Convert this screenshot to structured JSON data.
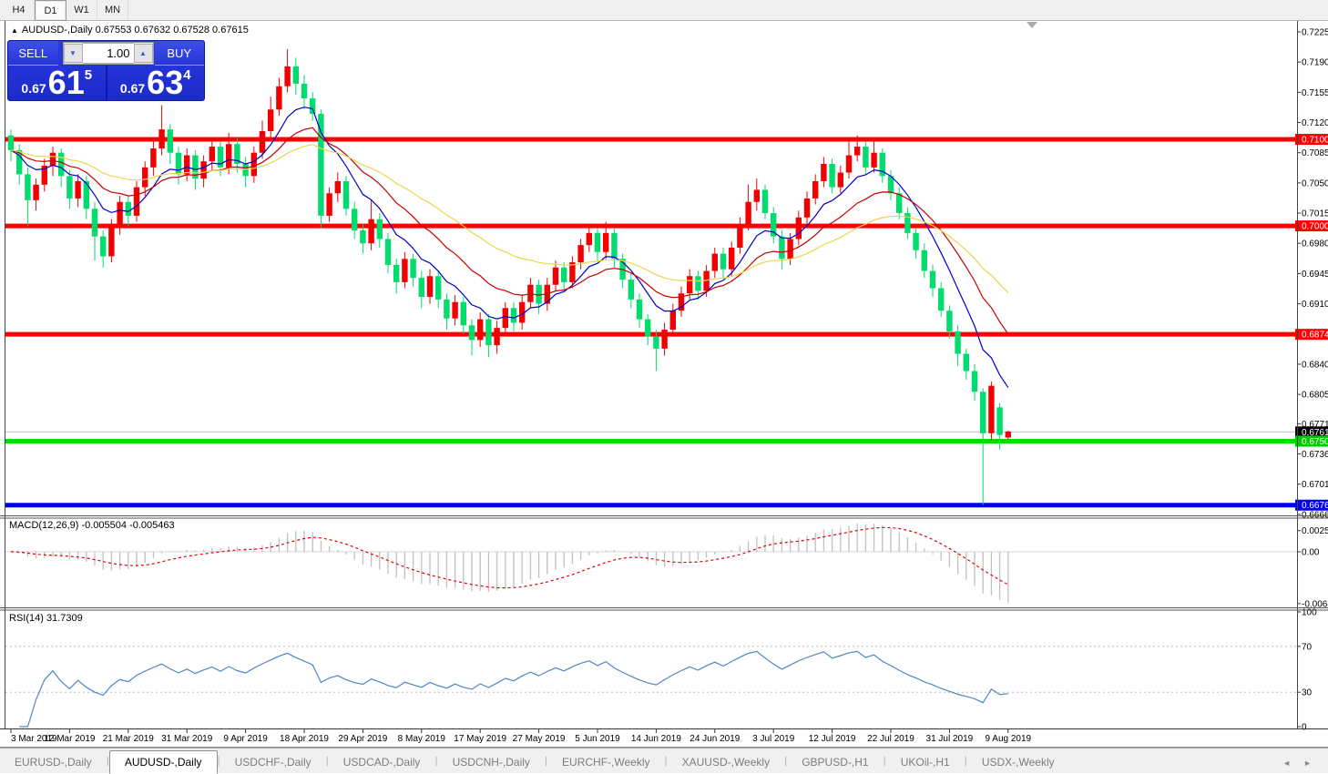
{
  "toolbar": {
    "timeframes": [
      {
        "label": "H4",
        "active": false
      },
      {
        "label": "D1",
        "active": true
      },
      {
        "label": "W1",
        "active": false
      },
      {
        "label": "MN",
        "active": false
      }
    ]
  },
  "chart_header": {
    "collapse_arrow": "▲",
    "title": "AUDUSD-,Daily  0.67553 0.67632 0.67528 0.67615",
    "symbol": "AUDUSD-",
    "period": "Daily",
    "open": "0.67553",
    "high": "0.67632",
    "low": "0.67528",
    "close": "0.67615"
  },
  "trade_panel": {
    "sell_label": "SELL",
    "buy_label": "BUY",
    "volume": "1.00",
    "spin_down": "▼",
    "spin_up": "▲",
    "sell_price_small": "0.67",
    "sell_price_big": "61",
    "sell_price_sup": "5",
    "buy_price_small": "0.67",
    "buy_price_big": "63",
    "buy_price_sup": "4"
  },
  "colors": {
    "candle_up": "#f20000",
    "candle_down": "#00dc6e",
    "ma_fast": "#0000c8",
    "ma_mid": "#c80000",
    "ma_slow": "#e8d84e",
    "macd_hist": "#c0c0c0",
    "macd_signal": "#e00000",
    "rsi_line": "#4e86c8",
    "level_red": "#ff0000",
    "level_green": "#00dd00",
    "level_blue": "#0000f0",
    "current_price_line": "#c0c0c0",
    "tag_red": "#ff0000",
    "tag_green": "#00cc00",
    "tag_blue": "#0000e8",
    "tag_black": "#000000"
  },
  "price_axis": {
    "ticks": [
      "0.72250",
      "0.71900",
      "0.71550",
      "0.71200",
      "0.70850",
      "0.70500",
      "0.70150",
      "0.69800",
      "0.69450",
      "0.69100",
      "0.68400",
      "0.68050",
      "0.67710",
      "0.67360",
      "0.67010",
      "0.66660"
    ],
    "tick_values": [
      0.7225,
      0.719,
      0.7155,
      0.712,
      0.7085,
      0.705,
      0.7015,
      0.698,
      0.6945,
      0.691,
      0.684,
      0.6805,
      0.6771,
      0.6736,
      0.6701,
      0.6666
    ]
  },
  "levels": {
    "resistance": [
      {
        "value": 0.71005,
        "label": "0.71005"
      },
      {
        "value": 0.70002,
        "label": "0.70002"
      },
      {
        "value": 0.68746,
        "label": "0.68746"
      }
    ],
    "support_green": {
      "value": 0.67508,
      "label": "0.67508"
    },
    "support_blue": {
      "value": 0.66767,
      "label": "0.66767"
    },
    "current_price": {
      "value": 0.67615,
      "label": "0.67615"
    }
  },
  "indicators": {
    "macd": {
      "label": "MACD(12,26,9) -0.005504 -0.005463",
      "name": "MACD(12,26,9)",
      "main_value": "-0.005504",
      "signal_value": "-0.005463",
      "axis": [
        {
          "text": "0.002574",
          "value": 0.002574
        },
        {
          "text": "0.00",
          "value": 0
        },
        {
          "text": "-0.00632",
          "value": -0.00632
        }
      ]
    },
    "rsi": {
      "label": "RSI(14) 31.7309",
      "name": "RSI(14)",
      "value": "31.7309",
      "axis": [
        {
          "text": "100",
          "value": 100
        },
        {
          "text": "70",
          "value": 70
        },
        {
          "text": "30",
          "value": 30
        },
        {
          "text": "0",
          "value": 0
        }
      ],
      "levels": [
        30,
        70
      ]
    }
  },
  "chart_data": {
    "type": "candlestick",
    "symbol": "AUDUSD-",
    "timeframe": "Daily",
    "price_scale": 0.0001,
    "x_axis_dates": [
      "3 Mar 2019",
      "12 Mar 2019",
      "21 Mar 2019",
      "31 Mar 2019",
      "9 Apr 2019",
      "18 Apr 2019",
      "29 Apr 2019",
      "8 May 2019",
      "17 May 2019",
      "27 May 2019",
      "5 Jun 2019",
      "14 Jun 2019",
      "24 Jun 2019",
      "3 Jul 2019",
      "12 Jul 2019",
      "22 Jul 2019",
      "31 Jul 2019",
      "9 Aug 2019"
    ],
    "bars_per_label": 7,
    "ylim": [
      0.6666,
      0.7232
    ],
    "candles_ohlc_pips": [
      [
        7105,
        7112,
        7075,
        7088
      ],
      [
        7088,
        7095,
        7048,
        7060
      ],
      [
        7060,
        7068,
        7000,
        7030
      ],
      [
        7030,
        7055,
        7018,
        7048
      ],
      [
        7048,
        7078,
        7040,
        7070
      ],
      [
        7070,
        7092,
        7058,
        7085
      ],
      [
        7085,
        7090,
        7045,
        7058
      ],
      [
        7058,
        7065,
        7020,
        7032
      ],
      [
        7032,
        7060,
        7022,
        7052
      ],
      [
        7052,
        7058,
        7008,
        7020
      ],
      [
        7020,
        7028,
        6960,
        6988
      ],
      [
        6988,
        6995,
        6952,
        6965
      ],
      [
        6965,
        7008,
        6958,
        7000
      ],
      [
        7000,
        7035,
        6990,
        7028
      ],
      [
        7028,
        7035,
        7000,
        7012
      ],
      [
        7012,
        7052,
        7005,
        7045
      ],
      [
        7045,
        7075,
        7035,
        7068
      ],
      [
        7068,
        7098,
        7058,
        7090
      ],
      [
        7090,
        7140,
        7082,
        7112
      ],
      [
        7112,
        7118,
        7072,
        7085
      ],
      [
        7085,
        7092,
        7048,
        7060
      ],
      [
        7060,
        7090,
        7052,
        7082
      ],
      [
        7082,
        7088,
        7042,
        7055
      ],
      [
        7055,
        7082,
        7045,
        7075
      ],
      [
        7075,
        7100,
        7065,
        7092
      ],
      [
        7092,
        7098,
        7058,
        7068
      ],
      [
        7068,
        7108,
        7060,
        7095
      ],
      [
        7095,
        7102,
        7062,
        7072
      ],
      [
        7072,
        7080,
        7045,
        7058
      ],
      [
        7058,
        7092,
        7050,
        7085
      ],
      [
        7085,
        7122,
        7078,
        7110
      ],
      [
        7110,
        7150,
        7102,
        7135
      ],
      [
        7135,
        7172,
        7128,
        7162
      ],
      [
        7162,
        7205,
        7155,
        7185
      ],
      [
        7185,
        7195,
        7152,
        7165
      ],
      [
        7165,
        7175,
        7135,
        7148
      ],
      [
        7148,
        7155,
        7122,
        7130
      ],
      [
        7130,
        7135,
        6998,
        7012
      ],
      [
        7012,
        7045,
        7005,
        7038
      ],
      [
        7038,
        7062,
        7028,
        7052
      ],
      [
        7052,
        7058,
        7012,
        7020
      ],
      [
        7020,
        7028,
        6985,
        6995
      ],
      [
        6995,
        7002,
        6968,
        6980
      ],
      [
        6980,
        7030,
        6972,
        7008
      ],
      [
        7008,
        7015,
        6975,
        6985
      ],
      [
        6985,
        6992,
        6945,
        6955
      ],
      [
        6955,
        6962,
        6922,
        6935
      ],
      [
        6935,
        6970,
        6928,
        6962
      ],
      [
        6962,
        6968,
        6930,
        6940
      ],
      [
        6940,
        6948,
        6905,
        6918
      ],
      [
        6918,
        6950,
        6910,
        6942
      ],
      [
        6942,
        6948,
        6905,
        6915
      ],
      [
        6915,
        6922,
        6880,
        6893
      ],
      [
        6893,
        6920,
        6885,
        6912
      ],
      [
        6912,
        6918,
        6875,
        6885
      ],
      [
        6885,
        6892,
        6850,
        6868
      ],
      [
        6868,
        6900,
        6860,
        6892
      ],
      [
        6892,
        6898,
        6848,
        6862
      ],
      [
        6862,
        6890,
        6852,
        6882
      ],
      [
        6882,
        6912,
        6875,
        6905
      ],
      [
        6905,
        6912,
        6878,
        6888
      ],
      [
        6888,
        6920,
        6880,
        6912
      ],
      [
        6912,
        6940,
        6905,
        6932
      ],
      [
        6932,
        6938,
        6898,
        6910
      ],
      [
        6910,
        6940,
        6902,
        6932
      ],
      [
        6932,
        6960,
        6925,
        6952
      ],
      [
        6952,
        6958,
        6925,
        6935
      ],
      [
        6935,
        6965,
        6928,
        6958
      ],
      [
        6958,
        6985,
        6950,
        6978
      ],
      [
        6978,
        7002,
        6970,
        6992
      ],
      [
        6992,
        6998,
        6960,
        6970
      ],
      [
        6970,
        7005,
        6962,
        6992
      ],
      [
        6992,
        6998,
        6952,
        6962
      ],
      [
        6962,
        6968,
        6928,
        6938
      ],
      [
        6938,
        6945,
        6905,
        6915
      ],
      [
        6915,
        6922,
        6882,
        6892
      ],
      [
        6892,
        6898,
        6862,
        6872
      ],
      [
        6872,
        6880,
        6832,
        6858
      ],
      [
        6858,
        6888,
        6850,
        6880
      ],
      [
        6880,
        6910,
        6872,
        6902
      ],
      [
        6902,
        6930,
        6895,
        6922
      ],
      [
        6922,
        6950,
        6915,
        6942
      ],
      [
        6942,
        6948,
        6915,
        6925
      ],
      [
        6925,
        6955,
        6918,
        6948
      ],
      [
        6948,
        6975,
        6940,
        6968
      ],
      [
        6968,
        6975,
        6940,
        6950
      ],
      [
        6950,
        6982,
        6942,
        6975
      ],
      [
        6975,
        7010,
        6968,
        7002
      ],
      [
        7002,
        7048,
        6995,
        7028
      ],
      [
        7028,
        7055,
        7018,
        7042
      ],
      [
        7042,
        7048,
        7008,
        7015
      ],
      [
        7015,
        7022,
        6980,
        6988
      ],
      [
        6988,
        6995,
        6950,
        6962
      ],
      [
        6962,
        6992,
        6955,
        6985
      ],
      [
        6985,
        7018,
        6978,
        7010
      ],
      [
        7010,
        7040,
        7002,
        7032
      ],
      [
        7032,
        7060,
        7025,
        7052
      ],
      [
        7052,
        7080,
        7045,
        7072
      ],
      [
        7072,
        7078,
        7038,
        7045
      ],
      [
        7045,
        7070,
        7038,
        7062
      ],
      [
        7062,
        7100,
        7055,
        7082
      ],
      [
        7082,
        7105,
        7075,
        7092
      ],
      [
        7092,
        7098,
        7060,
        7068
      ],
      [
        7068,
        7100,
        7062,
        7085
      ],
      [
        7085,
        7090,
        7050,
        7058
      ],
      [
        7058,
        7065,
        7030,
        7038
      ],
      [
        7038,
        7045,
        7008,
        7015
      ],
      [
        7015,
        7022,
        6985,
        6992
      ],
      [
        6992,
        6998,
        6962,
        6972
      ],
      [
        6972,
        6980,
        6940,
        6948
      ],
      [
        6948,
        6955,
        6918,
        6928
      ],
      [
        6928,
        6935,
        6895,
        6902
      ],
      [
        6902,
        6908,
        6870,
        6878
      ],
      [
        6878,
        6885,
        6838,
        6852
      ],
      [
        6852,
        6858,
        6822,
        6832
      ],
      [
        6832,
        6840,
        6798,
        6808
      ],
      [
        6808,
        6812,
        6677,
        6760
      ],
      [
        6760,
        6820,
        6752,
        6815
      ],
      [
        6790,
        6795,
        6741,
        6758
      ],
      [
        6755,
        6763,
        6753,
        6762
      ]
    ],
    "moving_averages": [
      {
        "type": "ema",
        "period": 8,
        "color_key": "ma_fast"
      },
      {
        "type": "ema",
        "period": 17,
        "color_key": "ma_mid"
      },
      {
        "type": "ema",
        "period": 34,
        "color_key": "ma_slow"
      }
    ],
    "macd_params": {
      "fast": 12,
      "slow": 26,
      "signal": 9
    },
    "rsi_params": {
      "period": 14
    }
  },
  "tabs": {
    "items": [
      {
        "label": "EURUSD-,Daily",
        "active": false
      },
      {
        "label": "AUDUSD-,Daily",
        "active": true
      },
      {
        "label": "USDCHF-,Daily",
        "active": false
      },
      {
        "label": "USDCAD-,Daily",
        "active": false
      },
      {
        "label": "USDCNH-,Daily",
        "active": false
      },
      {
        "label": "EURCHF-,Weekly",
        "active": false
      },
      {
        "label": "XAUUSD-,Weekly",
        "active": false
      },
      {
        "label": "GBPUSD-,H1",
        "active": false
      },
      {
        "label": "UKOil-,H1",
        "active": false
      },
      {
        "label": "USDX-,Weekly",
        "active": false
      }
    ],
    "scroll_left": "◄",
    "scroll_right": "►"
  }
}
